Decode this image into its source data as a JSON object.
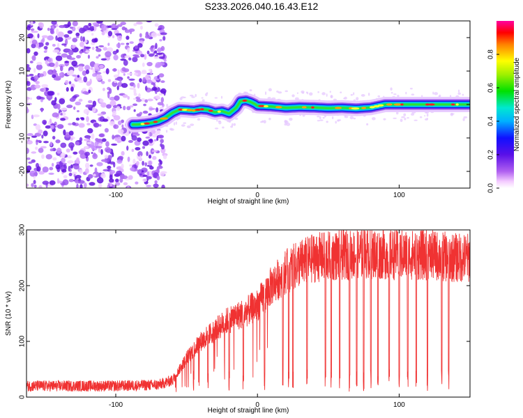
{
  "title": "S233.2026.040.16.43.E12",
  "chart_data": [
    {
      "type": "heatmap",
      "xlabel": "Height of straight line (km)",
      "ylabel": "Frequency (Hz)",
      "xlim": [
        -163,
        150
      ],
      "ylim": [
        -25,
        25
      ],
      "xticks": [
        -100,
        0,
        100
      ],
      "yticks": [
        -20,
        -10,
        0,
        10,
        20
      ],
      "colorbar": {
        "label": "Normalized spectral amplitude",
        "range": [
          0,
          1
        ],
        "ticks": [
          "0.0",
          "0.2",
          "0.4",
          "0.6",
          "0.8"
        ]
      },
      "ridge": {
        "description": "frequency ridge of maximum amplitude",
        "points": [
          [
            -85,
            -6
          ],
          [
            -80,
            -5.8
          ],
          [
            -75,
            -5.5
          ],
          [
            -70,
            -5
          ],
          [
            -65,
            -4
          ],
          [
            -60,
            -2.5
          ],
          [
            -55,
            -1.5
          ],
          [
            -50,
            -1.6
          ],
          [
            -45,
            -1.8
          ],
          [
            -40,
            -1.4
          ],
          [
            -35,
            -1.6
          ],
          [
            -30,
            -2.3
          ],
          [
            -25,
            -2
          ],
          [
            -20,
            -2.7
          ],
          [
            -15,
            -1
          ],
          [
            -12,
            1
          ],
          [
            -8,
            1.2
          ],
          [
            -5,
            0.8
          ],
          [
            -2,
            0.2
          ],
          [
            0,
            -0.4
          ],
          [
            10,
            -0.6
          ],
          [
            20,
            -1
          ],
          [
            30,
            -0.8
          ],
          [
            40,
            -0.9
          ],
          [
            50,
            -1.1
          ],
          [
            60,
            -1
          ],
          [
            70,
            -1.2
          ],
          [
            80,
            -0.9
          ],
          [
            90,
            0
          ],
          [
            100,
            0
          ],
          [
            120,
            0
          ],
          [
            140,
            0
          ],
          [
            150,
            0
          ]
        ],
        "noise_region_below_km": -65
      }
    },
    {
      "type": "line",
      "xlabel": "Height of straight line (km)",
      "ylabel": "SNR (10 * v/v)",
      "xlim": [
        -163,
        150
      ],
      "ylim": [
        0,
        300
      ],
      "xticks": [
        -100,
        0,
        100
      ],
      "yticks": [
        0,
        100,
        200,
        300
      ],
      "series": [
        {
          "name": "SNR",
          "color": "#f03232",
          "trend_x": [
            -163,
            -100,
            -70,
            -60,
            -50,
            -40,
            -30,
            -20,
            -10,
            0,
            10,
            20,
            30,
            40,
            60,
            80,
            100,
            120,
            140,
            150
          ],
          "trend_y": [
            20,
            20,
            22,
            30,
            70,
            100,
            120,
            140,
            150,
            165,
            200,
            225,
            240,
            250,
            255,
            258,
            255,
            255,
            250,
            250
          ],
          "dropout_x": [
            -45,
            -35,
            -20,
            -10,
            5,
            18,
            22,
            25,
            35,
            48,
            52,
            58,
            65,
            70,
            75,
            80,
            85,
            93,
            100,
            106,
            112,
            120,
            130,
            135
          ]
        }
      ]
    }
  ]
}
